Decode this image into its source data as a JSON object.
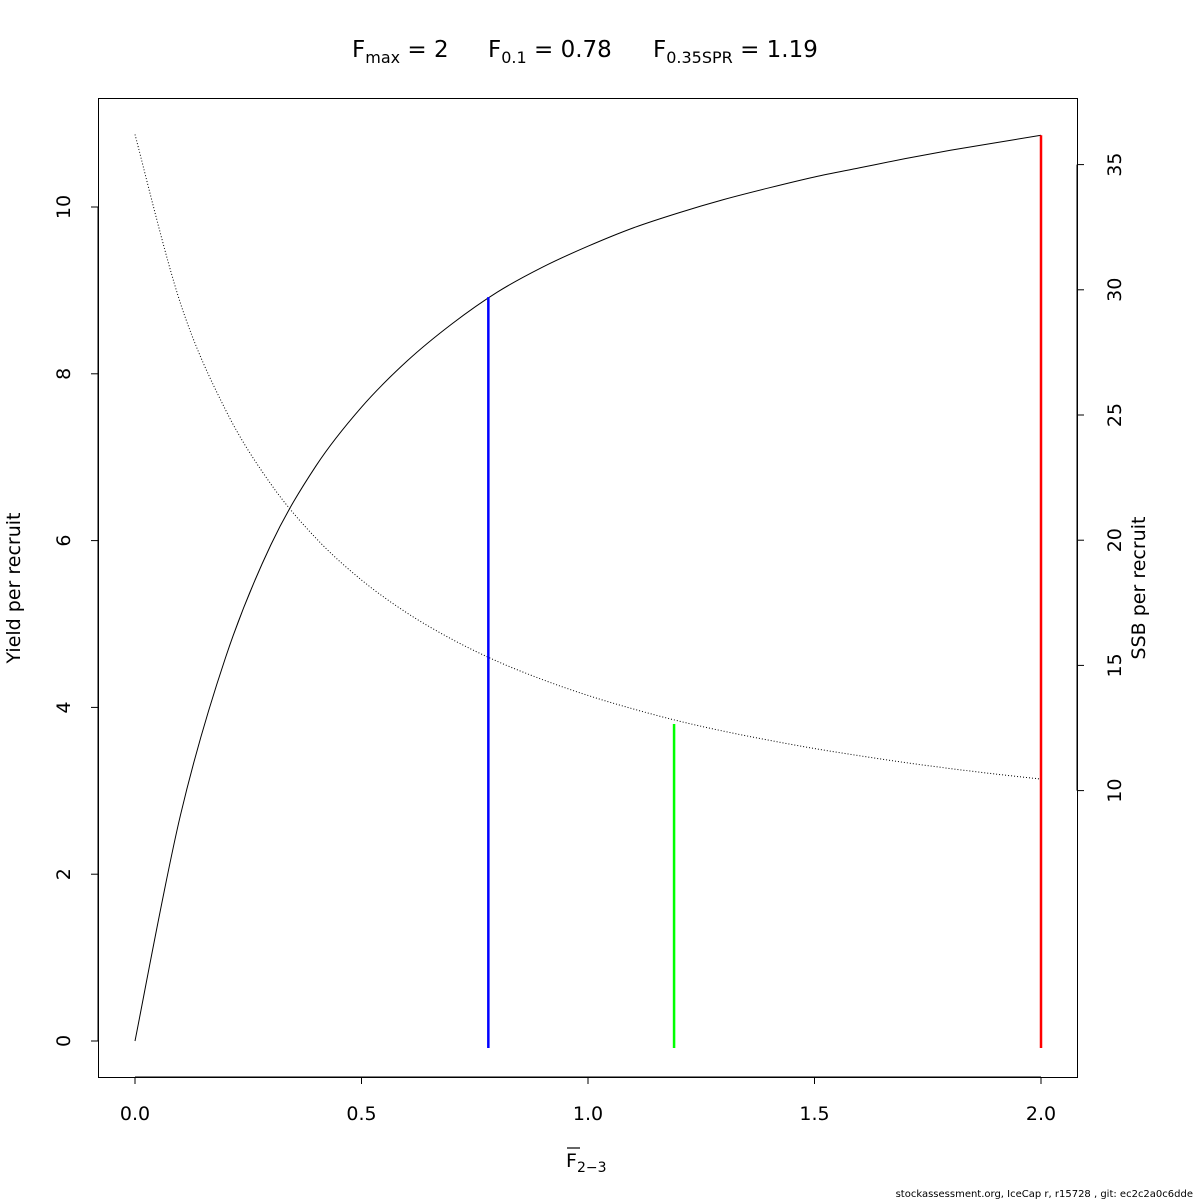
{
  "chart_data": {
    "type": "line",
    "title": {
      "fmax": {
        "main": "F",
        "sub": "max",
        "value": " = 2"
      },
      "f01": {
        "main": "F",
        "sub": "0.1",
        "value": " = 0.78"
      },
      "fspr": {
        "main": "F",
        "sub": "0.35SPR",
        "value": " = 1.19"
      }
    },
    "xlabel": {
      "main": "F",
      "sub": "2−3",
      "overbar": true
    },
    "ylabel": "Yield per recruit",
    "y2label": "SSB per recruit",
    "xlim": [
      0,
      2
    ],
    "ylim": [
      0,
      10.86
    ],
    "y2lim": [
      0,
      36.2
    ],
    "x_ticks": [
      "0.0",
      "0.5",
      "1.0",
      "1.5",
      "2.0"
    ],
    "y_ticks": [
      "0",
      "2",
      "4",
      "6",
      "8",
      "10"
    ],
    "y2_ticks": [
      "10",
      "15",
      "20",
      "25",
      "30",
      "35"
    ],
    "grid": false,
    "x": [
      0,
      0.1,
      0.2,
      0.3,
      0.4,
      0.5,
      0.6,
      0.7,
      0.8,
      0.9,
      1.0,
      1.1,
      1.2,
      1.3,
      1.4,
      1.5,
      1.6,
      1.7,
      1.8,
      1.9,
      2.0
    ],
    "series": [
      {
        "axis": "left",
        "style": "solid",
        "color": "#000000",
        "values": [
          0,
          2.7,
          4.6,
          5.95,
          6.9,
          7.6,
          8.15,
          8.6,
          8.98,
          9.28,
          9.53,
          9.75,
          9.93,
          10.09,
          10.23,
          10.36,
          10.47,
          10.58,
          10.68,
          10.77,
          10.86
        ]
      },
      {
        "axis": "right",
        "style": "dotted",
        "color": "#000000",
        "values": [
          36.2,
          29.48,
          25.2,
          22.24,
          20.07,
          18.41,
          17.1,
          16.04,
          15.16,
          14.43,
          13.8,
          13.26,
          12.78,
          12.37,
          12.01,
          11.68,
          11.39,
          11.12,
          10.88,
          10.66,
          10.46
        ]
      }
    ],
    "reference_lines": [
      {
        "label": "F0.1",
        "x": 0.78,
        "top_axis": "left",
        "top": 8.92,
        "color": "#0000ff"
      },
      {
        "label": "F0.35SPR",
        "x": 1.19,
        "top_axis": "right",
        "top": 12.66,
        "color": "#00ff00"
      },
      {
        "label": "Fmax",
        "x": 2.0,
        "top_axis": "left",
        "top": 10.86,
        "color": "#ff0000"
      }
    ]
  },
  "footer": "stockassessment.org, IceCap  r, r15728 , git: ec2c2a0c6dde"
}
